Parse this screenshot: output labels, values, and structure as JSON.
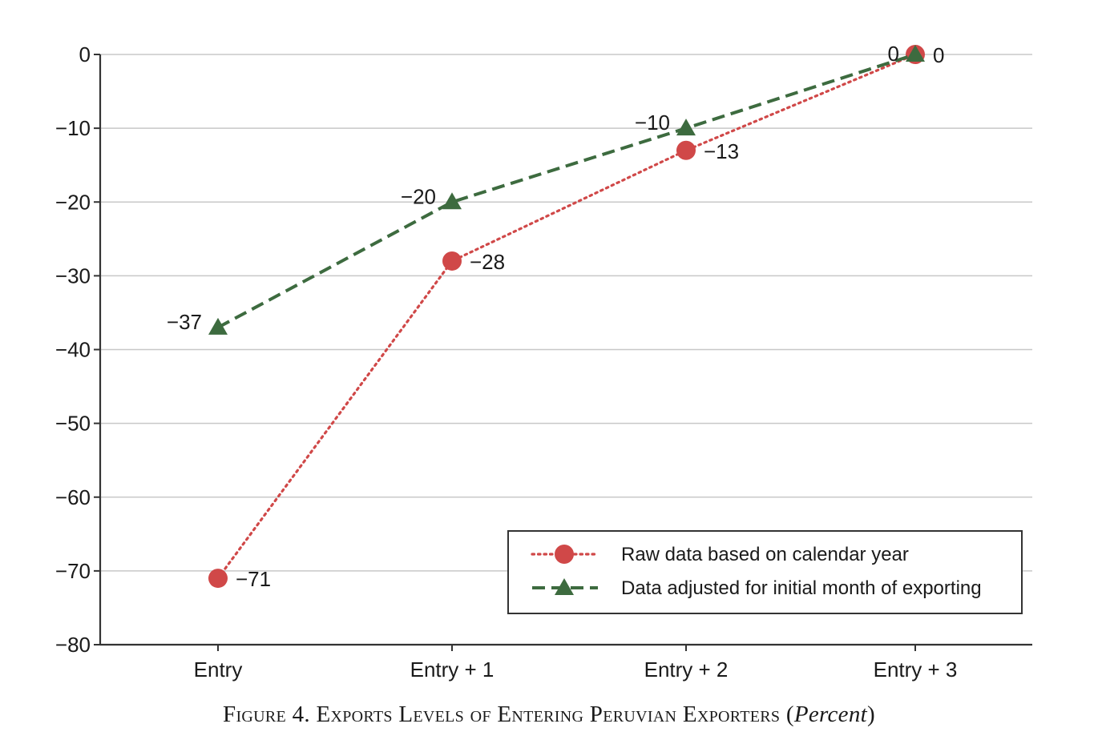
{
  "chart_data": {
    "type": "line",
    "categories": [
      "Entry",
      "Entry + 1",
      "Entry + 2",
      "Entry + 3"
    ],
    "series": [
      {
        "name": "Raw data based on calendar year",
        "values": [
          -71,
          -28,
          -13,
          0
        ],
        "labels": [
          "−71",
          "−28",
          "−13",
          "0"
        ],
        "color": "#d04848",
        "line_style": "dotted",
        "marker": "circle"
      },
      {
        "name": "Data adjusted for initial month of exporting",
        "values": [
          -37,
          -20,
          -10,
          0
        ],
        "labels": [
          "−37",
          "−20",
          "−10",
          "0"
        ],
        "color": "#3d6b3f",
        "line_style": "dashed",
        "marker": "triangle"
      }
    ],
    "ylim": [
      -80,
      0
    ],
    "yticks": [
      0,
      -10,
      -20,
      -30,
      -40,
      -50,
      -60,
      -70,
      -80
    ],
    "ytick_labels": [
      "0",
      "−10",
      "−20",
      "−30",
      "−40",
      "−50",
      "−60",
      "−70",
      "−80"
    ],
    "grid": true,
    "legend_position": "bottom-right"
  },
  "caption": {
    "prefix": "Figure 4. Exports Levels of Entering Peruvian Exporters (",
    "italic": "Percent",
    "suffix": ")"
  }
}
